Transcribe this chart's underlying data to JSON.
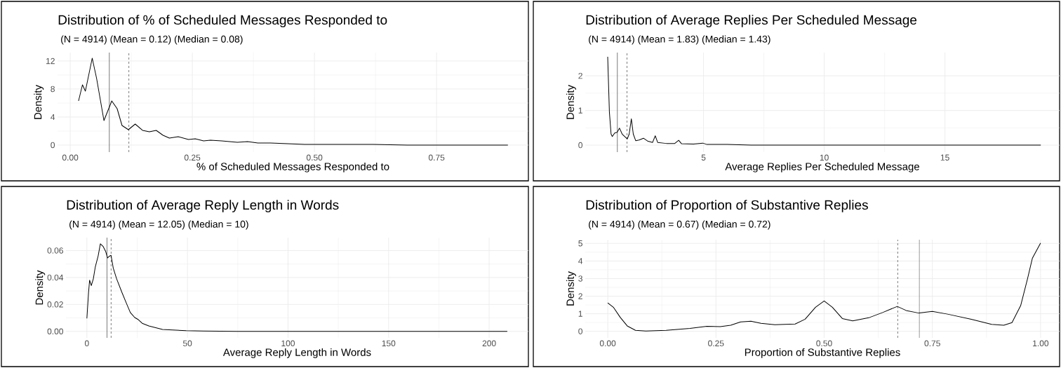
{
  "chart_data": [
    {
      "type": "line",
      "title": "Distribution of % of Scheduled Messages Responded to",
      "subtitle": "(N = 4914) (Mean = 0.12) (Median = 0.08)",
      "xlabel": "% of Scheduled Messages Responded to",
      "ylabel": "Density",
      "x": [
        0.017,
        0.025,
        0.031,
        0.045,
        0.054,
        0.069,
        0.085,
        0.096,
        0.106,
        0.119,
        0.133,
        0.148,
        0.162,
        0.176,
        0.19,
        0.203,
        0.221,
        0.242,
        0.256,
        0.273,
        0.287,
        0.31,
        0.342,
        0.363,
        0.384,
        0.41,
        0.446,
        0.48,
        0.551,
        0.62,
        0.69,
        0.76,
        0.83,
        0.896
      ],
      "series": [
        {
          "color": "#000000",
          "values": [
            6.3,
            8.6,
            7.7,
            12.4,
            9.5,
            3.5,
            6.3,
            5.2,
            2.8,
            2.2,
            3.0,
            2.1,
            1.9,
            2.1,
            1.4,
            1.0,
            1.2,
            0.8,
            0.9,
            0.6,
            0.7,
            0.6,
            0.4,
            0.5,
            0.3,
            0.3,
            0.2,
            0.1,
            0.1,
            0.1,
            0,
            0,
            0,
            0
          ]
        }
      ],
      "xlim": [
        -0.026,
        0.938
      ],
      "ylim": [
        -1.0,
        13.2
      ],
      "xticks": [
        {
          "value": 0,
          "label": "0.00"
        },
        {
          "value": 0.25,
          "label": "0.25"
        },
        {
          "value": 0.5,
          "label": "0.50"
        },
        {
          "value": 0.75,
          "label": "0.75"
        }
      ],
      "yticks": [
        0,
        4,
        8,
        12
      ],
      "ref_lines": [
        {
          "axis": "x",
          "value": 0.08,
          "color": "#222222",
          "line_style": "solid"
        },
        {
          "axis": "x",
          "value": 0.12,
          "color": "#222222",
          "line_style": "dashed"
        }
      ],
      "grid": true
    },
    {
      "type": "line",
      "title": "Distribution of Average Replies Per Scheduled Message",
      "subtitle": "(N = 4914) (Mean = 1.83) (Median = 1.43)",
      "xlabel": "Average Replies Per Scheduled Message",
      "ylabel": "Density",
      "x": [
        1.03,
        1.1,
        1.17,
        1.22,
        1.32,
        1.42,
        1.52,
        1.63,
        1.84,
        1.92,
        2.01,
        2.09,
        2.19,
        2.33,
        2.51,
        2.68,
        2.89,
        3.0,
        3.1,
        3.46,
        3.81,
        3.97,
        4.09,
        4.58,
        4.97,
        5.14,
        5.98,
        6.97,
        18.97
      ],
      "series": [
        {
          "color": "#000000",
          "values": [
            2.55,
            0.96,
            0.32,
            0.25,
            0.35,
            0.37,
            0.49,
            0.32,
            0.18,
            0.32,
            0.76,
            0.32,
            0.13,
            0.15,
            0.2,
            0.12,
            0.08,
            0.27,
            0.08,
            0.05,
            0.05,
            0.14,
            0.04,
            0.03,
            0.06,
            0.02,
            0.02,
            0,
            0
          ]
        }
      ],
      "xlim": [
        0.1,
        19.75
      ],
      "ylim": [
        -0.2,
        2.67
      ],
      "xticks": [
        5,
        10,
        15
      ],
      "yticks": [
        0,
        1,
        2
      ],
      "ref_lines": [
        {
          "axis": "x",
          "value": 1.43,
          "color": "#222222",
          "line_style": "solid"
        },
        {
          "axis": "x",
          "value": 1.83,
          "color": "#222222",
          "line_style": "dashed"
        }
      ],
      "grid": true
    },
    {
      "type": "line",
      "title": "Distribution of Average Reply Length in Words",
      "subtitle": "(N = 4914) (Mean = 12.05) (Median = 10)",
      "xlabel": "Average Reply Length in Words",
      "ylabel": "Density",
      "x": [
        0,
        0.84,
        1.35,
        2.2,
        3.2,
        4.2,
        5.6,
        6.7,
        8.1,
        9.3,
        10.3,
        11.1,
        12.0,
        13.1,
        14.8,
        17.4,
        19.9,
        21.6,
        23.8,
        25.3,
        27.5,
        30.8,
        34.2,
        37.6,
        42.6,
        49.4,
        57.8,
        74.6,
        209
      ],
      "series": [
        {
          "color": "#000000",
          "values": [
            0.0096,
            0.029,
            0.038,
            0.034,
            0.039,
            0.048,
            0.056,
            0.065,
            0.063,
            0.0595,
            0.0545,
            0.0557,
            0.0565,
            0.047,
            0.039,
            0.029,
            0.02,
            0.014,
            0.0103,
            0.009,
            0.006,
            0.004,
            0.0028,
            0.0015,
            0.001,
            0.0005,
            0.0003,
            0,
            0
          ]
        }
      ],
      "xlim": [
        -10.4,
        219.5
      ],
      "ylim": [
        -0.0048,
        0.0696
      ],
      "xticks": [
        0,
        50,
        100,
        150,
        200
      ],
      "yticks": [
        {
          "value": 0,
          "label": "0.00"
        },
        {
          "value": 0.02,
          "label": "0.02"
        },
        {
          "value": 0.04,
          "label": "0.04"
        },
        {
          "value": 0.06,
          "label": "0.06"
        }
      ],
      "ref_lines": [
        {
          "axis": "x",
          "value": 10,
          "color": "#222222",
          "line_style": "solid"
        },
        {
          "axis": "x",
          "value": 12.05,
          "color": "#222222",
          "line_style": "dashed"
        }
      ],
      "grid": true
    },
    {
      "type": "line",
      "title": "Distribution of Proportion of Substantive Replies",
      "subtitle": "(N = 4914) (Mean = 0.67) (Median = 0.72)",
      "xlabel": "Proportion of Substantive Replies",
      "ylabel": "Density",
      "x": [
        0,
        0.013,
        0.029,
        0.045,
        0.064,
        0.088,
        0.135,
        0.19,
        0.229,
        0.26,
        0.284,
        0.307,
        0.331,
        0.354,
        0.386,
        0.433,
        0.456,
        0.48,
        0.5,
        0.519,
        0.542,
        0.566,
        0.605,
        0.636,
        0.669,
        0.691,
        0.719,
        0.75,
        0.785,
        0.84,
        0.887,
        0.915,
        0.934,
        0.954,
        0.97,
        0.981,
        1.0
      ],
      "series": [
        {
          "color": "#000000",
          "values": [
            1.62,
            1.37,
            0.79,
            0.31,
            0.06,
            0.02,
            0.06,
            0.17,
            0.29,
            0.27,
            0.35,
            0.54,
            0.58,
            0.46,
            0.38,
            0.42,
            0.69,
            1.37,
            1.73,
            1.37,
            0.73,
            0.6,
            0.79,
            1.08,
            1.42,
            1.17,
            1.04,
            1.13,
            0.98,
            0.69,
            0.4,
            0.35,
            0.5,
            1.46,
            3.0,
            4.15,
            5.02
          ]
        }
      ],
      "xlim": [
        -0.052,
        1.044
      ],
      "ylim": [
        -0.37,
        5.21
      ],
      "xticks": [
        {
          "value": 0,
          "label": "0.00"
        },
        {
          "value": 0.25,
          "label": "0.25"
        },
        {
          "value": 0.5,
          "label": "0.50"
        },
        {
          "value": 0.75,
          "label": "0.75"
        },
        {
          "value": 1,
          "label": "1.00"
        }
      ],
      "yticks": [
        0,
        1,
        2,
        3,
        4,
        5
      ],
      "ref_lines": [
        {
          "axis": "x",
          "value": 0.72,
          "color": "#555555",
          "line_style": "solid"
        },
        {
          "axis": "x",
          "value": 0.67,
          "color": "#222222",
          "line_style": "dashed"
        }
      ],
      "grid": true
    }
  ]
}
